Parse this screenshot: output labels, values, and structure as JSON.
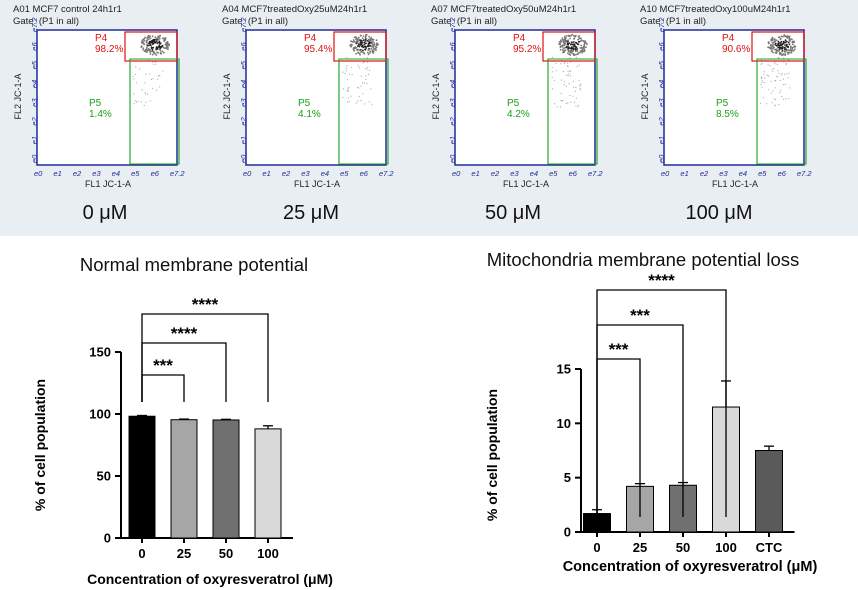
{
  "flow_panels": [
    {
      "title": "A01 MCF7 control 24h1r1",
      "gate": "Gate: (P1 in all)",
      "p4_label": "P4",
      "p4_value": "98.2%",
      "p5_label": "P5",
      "p5_value": "1.4%",
      "concentration": "0 μM"
    },
    {
      "title": "A04 MCF7treatedOxy25uM24h1r1",
      "gate": "Gate: (P1 in all)",
      "p4_label": "P4",
      "p4_value": "95.4%",
      "p5_label": "P5",
      "p5_value": "4.1%",
      "concentration": "25 μM"
    },
    {
      "title": "A07 MCF7treatedOxy50uM24h1r1",
      "gate": "Gate: (P1 in all)",
      "p4_label": "P4",
      "p4_value": "95.2%",
      "p5_label": "P5",
      "p5_value": "4.2%",
      "concentration": "50 μM"
    },
    {
      "title": "A10 MCF7treatedOxy100uM24h1r1",
      "gate": "Gate: (P1 in all)",
      "p4_label": "P4",
      "p4_value": "90.6%",
      "p5_label": "P5",
      "p5_value": "8.5%",
      "concentration": "100 μM"
    }
  ],
  "flow_axes": {
    "x_label": "FL1 JC-1-A",
    "y_label": "FL2 JC-1-A",
    "ticks": [
      "e0",
      "e1",
      "e2",
      "e3",
      "e4",
      "e5",
      "e6",
      "e7.2"
    ]
  },
  "chart_data": [
    {
      "type": "bar",
      "title": "Normal membrane potential",
      "categories": [
        "0",
        "25",
        "50",
        "100"
      ],
      "values": [
        98.2,
        95.4,
        95.2,
        88.0
      ],
      "errors": [
        0.6,
        0.5,
        0.5,
        2.5
      ],
      "colors": [
        "#000000",
        "#a6a6a6",
        "#707070",
        "#d9d9d9"
      ],
      "xlabel": "Concentration of oxyresveratrol (μM)",
      "ylabel": "% of cell population",
      "ylim": [
        0,
        150
      ],
      "yticks": [
        "0",
        "50",
        "100",
        "150"
      ],
      "significance": [
        {
          "from": 0,
          "to": 1,
          "label": "***"
        },
        {
          "from": 0,
          "to": 2,
          "label": "****"
        },
        {
          "from": 0,
          "to": 3,
          "label": "****"
        }
      ]
    },
    {
      "type": "bar",
      "title": "Mitochondria membrane potential loss",
      "categories": [
        "0",
        "25",
        "50",
        "100",
        "CTC"
      ],
      "values": [
        1.7,
        4.2,
        4.3,
        11.5,
        7.5
      ],
      "errors": [
        0.35,
        0.25,
        0.25,
        2.4,
        0.4
      ],
      "colors": [
        "#000000",
        "#a6a6a6",
        "#707070",
        "#d9d9d9",
        "#5a5a5a"
      ],
      "xlabel": "Concentration of oxyresveratrol (μM)",
      "ylabel": "% of cell population",
      "ylim": [
        0,
        15
      ],
      "yticks": [
        "0",
        "5",
        "10",
        "15"
      ],
      "significance": [
        {
          "from": 0,
          "to": 1,
          "label": "***"
        },
        {
          "from": 0,
          "to": 2,
          "label": "***"
        },
        {
          "from": 0,
          "to": 3,
          "label": "****"
        }
      ]
    }
  ]
}
